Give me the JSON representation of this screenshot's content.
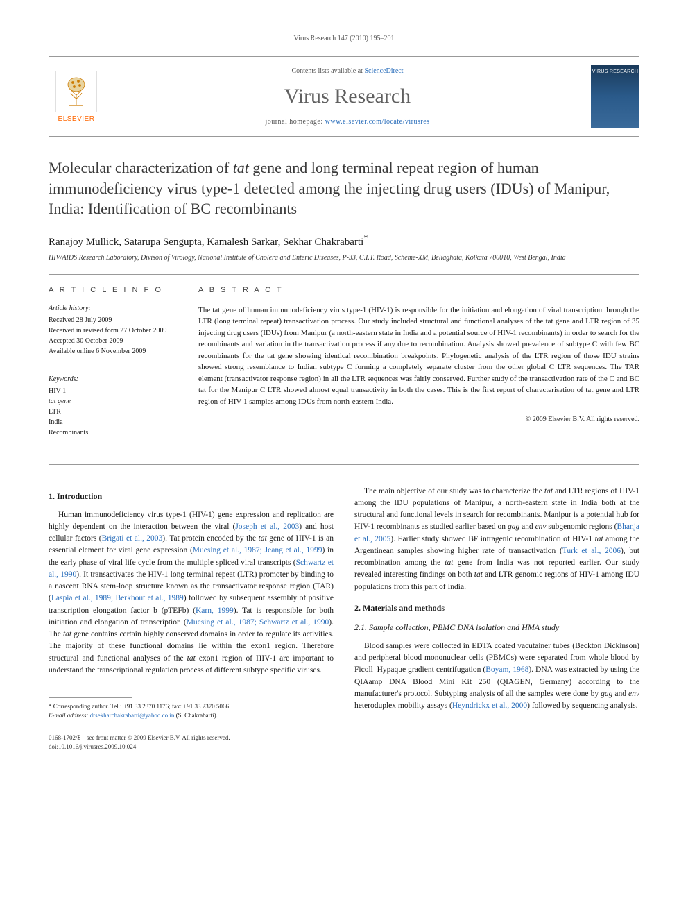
{
  "running_header": "Virus Research 147 (2010) 195–201",
  "topband": {
    "contents_prefix": "Contents lists available at ",
    "contents_link": "ScienceDirect",
    "journal_name": "Virus Research",
    "homepage_prefix": "journal homepage: ",
    "homepage_url": "www.elsevier.com/locate/virusres",
    "elsevier_label": "ELSEVIER",
    "cover_label": "VIRUS RESEARCH"
  },
  "title_parts": {
    "p1": "Molecular characterization of ",
    "p2_ital": "tat",
    "p3": " gene and long terminal repeat region of human immunodeficiency virus type-1 detected among the injecting drug users (IDUs) of Manipur, India: Identification of BC recombinants"
  },
  "authors": "Ranajoy Mullick, Satarupa Sengupta, Kamalesh Sarkar, Sekhar Chakrabarti",
  "author_mark": "*",
  "affiliation": "HIV/AIDS Research Laboratory, Divison of Virology, National Institute of Cholera and Enteric Diseases, P-33, C.I.T. Road, Scheme-XM, Beliaghata, Kolkata 700010, West Bengal, India",
  "info": {
    "heading": "A R T I C L E   I N F O",
    "history_label": "Article history:",
    "history": [
      "Received 28 July 2009",
      "Received in revised form 27 October 2009",
      "Accepted 30 October 2009",
      "Available online 6 November 2009"
    ],
    "keywords_label": "Keywords:",
    "keywords": [
      "HIV-1",
      "tat gene",
      "LTR",
      "India",
      "Recombinants"
    ]
  },
  "abstract": {
    "heading": "A B S T R A C T",
    "text": "The tat gene of human immunodeficiency virus type-1 (HIV-1) is responsible for the initiation and elongation of viral transcription through the LTR (long terminal repeat) transactivation process. Our study included structural and functional analyses of the tat gene and LTR region of 35 injecting drug users (IDUs) from Manipur (a north-eastern state in India and a potential source of HIV-1 recombinants) in order to search for the recombinants and variation in the transactivation process if any due to recombination. Analysis showed prevalence of subtype C with few BC recombinants for the tat gene showing identical recombination breakpoints. Phylogenetic analysis of the LTR region of those IDU strains showed strong resemblance to Indian subtype C forming a completely separate cluster from the other global C LTR sequences. The TAR element (transactivator response region) in all the LTR sequences was fairly conserved. Further study of the transactivation rate of the C and BC tat for the Manipur C LTR showed almost equal transactivity in both the cases. This is the first report of characterisation of tat gene and LTR region of HIV-1 samples among IDUs from north-eastern India.",
    "copyright": "© 2009 Elsevier B.V. All rights reserved."
  },
  "sections": {
    "intro_head": "1.  Introduction",
    "intro_p1_parts": [
      {
        "t": "Human immunodeficiency virus type-1 (HIV-1) gene expression and replication are highly dependent on the interaction between the viral ("
      },
      {
        "t": "Joseph et al., 2003",
        "ref": true
      },
      {
        "t": ") and host cellular factors ("
      },
      {
        "t": "Brigati et al., 2003",
        "ref": true
      },
      {
        "t": "). Tat protein encoded by the "
      },
      {
        "t": "tat",
        "ital": true
      },
      {
        "t": " gene of HIV-1 is an essential element for viral gene expression ("
      },
      {
        "t": "Muesing et al., 1987; Jeang et al., 1999",
        "ref": true
      },
      {
        "t": ") in the early phase of viral life cycle from the multiple spliced viral transcripts ("
      },
      {
        "t": "Schwartz et al., 1990",
        "ref": true
      },
      {
        "t": "). It transactivates the HIV-1 long terminal repeat (LTR) promoter by binding to a nascent RNA stem-loop structure known as the transactivator response region (TAR) ("
      },
      {
        "t": "Laspia et al., 1989; Berkhout et al., 1989",
        "ref": true
      },
      {
        "t": ") followed by subsequent assembly of positive transcription elongation factor b (pTEFb) ("
      },
      {
        "t": "Karn, 1999",
        "ref": true
      },
      {
        "t": "). Tat is responsible for both initiation and elongation of transcription ("
      },
      {
        "t": "Muesing et al., 1987; Schwartz et al., 1990",
        "ref": true
      },
      {
        "t": "). The "
      },
      {
        "t": "tat",
        "ital": true
      },
      {
        "t": " gene contains certain highly conserved domains in order to regulate its activities. The majority of these functional domains lie within the exon1 region. Therefore structural and functional analyses of the "
      },
      {
        "t": "tat",
        "ital": true
      },
      {
        "t": " exon1 region of HIV-1 are important to understand the transcriptional regulation process of different subtype specific viruses."
      }
    ],
    "intro_p2_parts": [
      {
        "t": "The main objective of our study was to characterize the "
      },
      {
        "t": "tat",
        "ital": true
      },
      {
        "t": " and LTR regions of HIV-1 among the IDU populations of Manipur, a north-eastern state in India both at the structural and functional levels in search for recombinants. Manipur is a potential hub for HIV-1 recombinants as studied earlier based on "
      },
      {
        "t": "gag",
        "ital": true
      },
      {
        "t": " and "
      },
      {
        "t": "env",
        "ital": true
      },
      {
        "t": " subgenomic regions ("
      },
      {
        "t": "Bhanja et al., 2005",
        "ref": true
      },
      {
        "t": "). Earlier study showed BF intragenic recombination of HIV-1 "
      },
      {
        "t": "tat",
        "ital": true
      },
      {
        "t": " among the Argentinean samples showing higher rate of transactivation ("
      },
      {
        "t": "Turk et al., 2006",
        "ref": true
      },
      {
        "t": "), but recombination among the "
      },
      {
        "t": "tat",
        "ital": true
      },
      {
        "t": " gene from India was not reported earlier. Our study revealed interesting findings on both "
      },
      {
        "t": "tat",
        "ital": true
      },
      {
        "t": " and LTR genomic regions of HIV-1 among IDU populations from this part of India."
      }
    ],
    "methods_head": "2.  Materials and methods",
    "methods_sub1": "2.1.  Sample collection, PBMC DNA isolation and HMA study",
    "methods_p1_parts": [
      {
        "t": "Blood samples were collected in EDTA coated vacutainer tubes (Beckton Dickinson) and peripheral blood mononuclear cells (PBMCs) were separated from whole blood by Ficoll–Hypaque gradient centrifugation ("
      },
      {
        "t": "Boyam, 1968",
        "ref": true
      },
      {
        "t": "). DNA was extracted by using the QIAamp DNA Blood Mini Kit 250 (QIAGEN, Germany) according to the manufacturer's protocol. Subtyping analysis of all the samples were done by "
      },
      {
        "t": "gag",
        "ital": true
      },
      {
        "t": " and "
      },
      {
        "t": "env",
        "ital": true
      },
      {
        "t": " heteroduplex mobility assays ("
      },
      {
        "t": "Heyndrickx et al., 2000",
        "ref": true
      },
      {
        "t": ") followed by sequencing analysis."
      }
    ]
  },
  "footnote": {
    "corr_label": "* Corresponding author. Tel.: +91 33 2370 1176; fax: +91 33 2370 5066.",
    "email_label": "E-mail address:",
    "email": "drsekharchakrabarti@yahoo.co.in",
    "email_suffix": "(S. Chakrabarti)."
  },
  "footer": {
    "line1": "0168-1702/$ – see front matter © 2009 Elsevier B.V. All rights reserved.",
    "line2": "doi:10.1016/j.virusres.2009.10.024"
  },
  "colors": {
    "link": "#2a6ebb",
    "elsevier_orange": "#ff6600",
    "text": "#1a1a1a"
  }
}
